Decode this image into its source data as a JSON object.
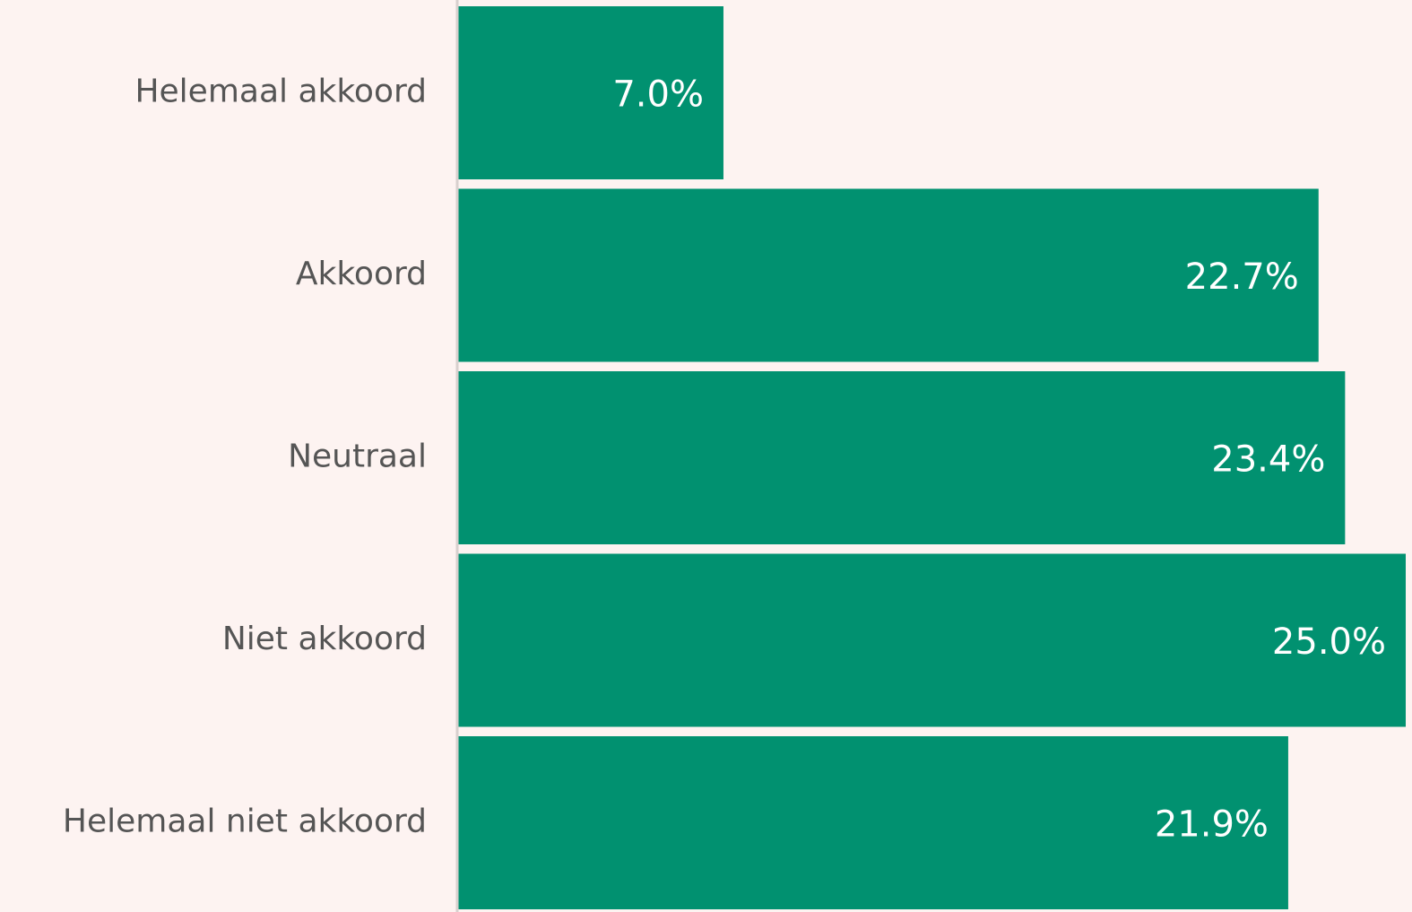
{
  "chart_data": {
    "type": "hbar",
    "categories": [
      "Helemaal akkoord",
      "Akkoord",
      "Neutraal",
      "Niet akkoord",
      "Helemaal niet akkoord"
    ],
    "values": [
      7.0,
      22.7,
      23.4,
      25.0,
      21.9
    ],
    "value_labels": [
      "7.0%",
      "22.7%",
      "23.4%",
      "25.0%",
      "21.9%"
    ],
    "color": "#019170",
    "xlim": [
      0,
      25
    ]
  }
}
